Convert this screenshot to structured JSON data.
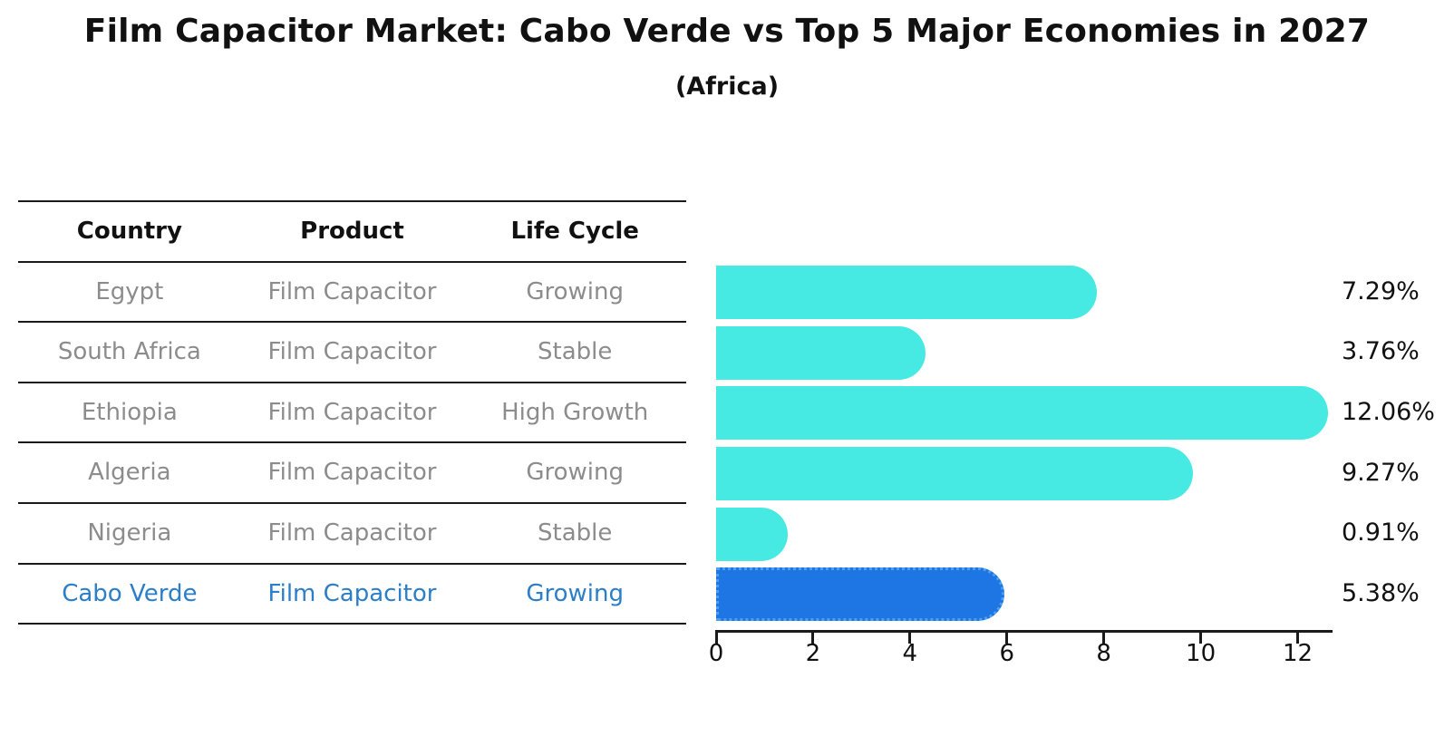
{
  "title": "Film Capacitor Market: Cabo Verde vs Top 5 Major Economies in 2027",
  "subtitle": "(Africa)",
  "table": {
    "headers": [
      "Country",
      "Product",
      "Life Cycle"
    ],
    "rows": [
      {
        "country": "Egypt",
        "product": "Film Capacitor",
        "life_cycle": "Growing",
        "highlight": false
      },
      {
        "country": "South Africa",
        "product": "Film Capacitor",
        "life_cycle": "Stable",
        "highlight": false
      },
      {
        "country": "Ethiopia",
        "product": "Film Capacitor",
        "life_cycle": "High Growth",
        "highlight": false
      },
      {
        "country": "Algeria",
        "product": "Film Capacitor",
        "life_cycle": "Growing",
        "highlight": false
      },
      {
        "country": "Nigeria",
        "product": "Film Capacitor",
        "life_cycle": "Stable",
        "highlight": false
      },
      {
        "country": "Cabo Verde",
        "product": "Film Capacitor",
        "life_cycle": "Growing",
        "highlight": true
      }
    ]
  },
  "chart_data": {
    "type": "bar",
    "orientation": "horizontal",
    "categories": [
      "Egypt",
      "South Africa",
      "Ethiopia",
      "Algeria",
      "Nigeria",
      "Cabo Verde"
    ],
    "values": [
      7.29,
      3.76,
      12.06,
      9.27,
      0.91,
      5.38
    ],
    "value_labels": [
      "7.29%",
      "3.76%",
      "12.06%",
      "9.27%",
      "0.91%",
      "5.38%"
    ],
    "x_ticks": [
      0,
      2,
      4,
      6,
      8,
      10,
      12
    ],
    "xlim": [
      0,
      12.72
    ],
    "grid": false,
    "legend_position": "none",
    "title": "Film Capacitor Market: Cabo Verde vs Top 5 Major Economies in 2027 (Africa)",
    "xlabel": "",
    "ylabel": "",
    "bar_color": "#47E9E3",
    "highlight_bar_color": "#1E76E4",
    "highlight_index": 5,
    "highlight_text_color": "#2B7EC8",
    "axis_color": "#1a1a1a",
    "label_color": "#111111",
    "muted_text_color": "#8c8c8c"
  }
}
